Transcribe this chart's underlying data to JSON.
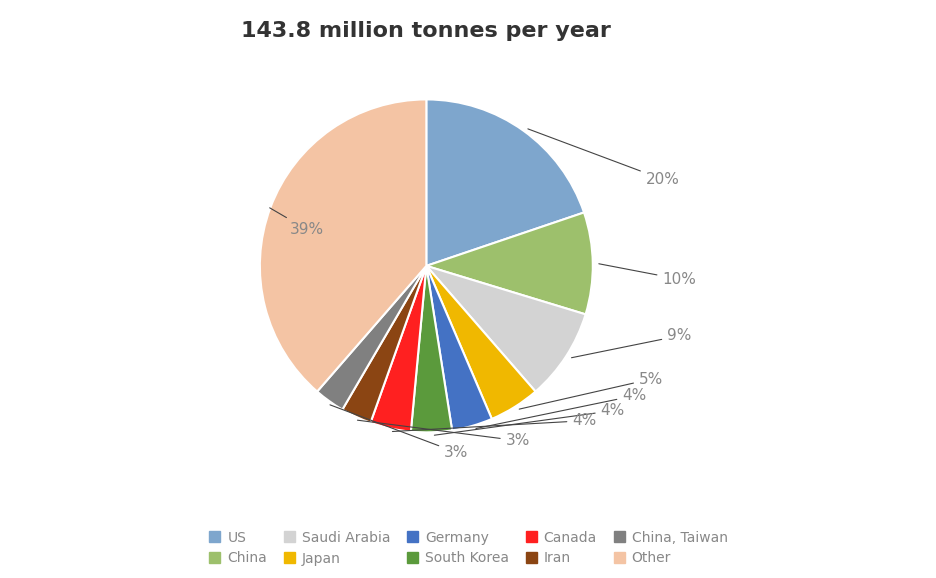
{
  "title": "143.8 million tonnes per year",
  "labels": [
    "US",
    "China",
    "Saudi Arabia",
    "Japan",
    "Germany",
    "South Korea",
    "Canada",
    "Iran",
    "China, Taiwan",
    "Other"
  ],
  "values": [
    20,
    10,
    9,
    5,
    4,
    4,
    4,
    3,
    3,
    39
  ],
  "colors": [
    "#7EA6CD",
    "#9DC06C",
    "#D3D3D3",
    "#F0B800",
    "#4472C4",
    "#5B9A3C",
    "#FF2020",
    "#8B4513",
    "#808080",
    "#F4C4A4"
  ],
  "label_pcts": [
    "20%",
    "10%",
    "9%",
    "5%",
    "4%",
    "4%",
    "4%",
    "3%",
    "3%",
    "39%"
  ],
  "title_fontsize": 16,
  "label_fontsize": 11,
  "legend_fontsize": 10,
  "legend_rows": [
    [
      "US",
      "China",
      "Saudi Arabia",
      "Japan",
      "Germany"
    ],
    [
      "South Korea",
      "Canada",
      "Iran",
      "China, Taiwan",
      "Other"
    ]
  ]
}
